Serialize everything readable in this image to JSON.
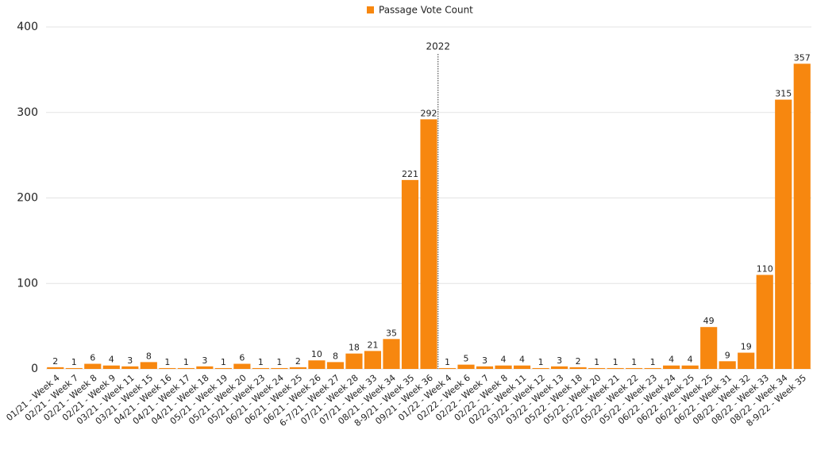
{
  "chart_data": {
    "type": "bar",
    "categories": [
      "01/21 - Week 4",
      "02/21 - Week 7",
      "02/21 - Week 8",
      "02/21 - Week 9",
      "03/21 - Week 11",
      "03/21 - Week 15",
      "04/21 - Week 16",
      "04/21 - Week 17",
      "04/21 - Week 18",
      "05/21 - Week 19",
      "05/21 - Week 20",
      "05/21 - Week 23",
      "06/21 - Week 24",
      "06/21 - Week 25",
      "06/21 - Week 26",
      "6-7/21 - Week 27",
      "07/21 - Week 28",
      "07/21 - Week 33",
      "08/21 - Week 34",
      "8-9/21 - Week 35",
      "09/21 - Week 36",
      "01/22 - Week 4",
      "02/22 - Week 6",
      "02/22 - Week 7",
      "02/22 - Week 8",
      "02/22 - Week 11",
      "03/22 - Week 12",
      "03/22 - Week 13",
      "05/22 - Week 18",
      "05/22 - Week 20",
      "05/22 - Week 21",
      "05/22 - Week 22",
      "05/22 - Week 23",
      "06/22 - Week 24",
      "06/22 - Week 25",
      "06/22 - Week 25",
      "06/22 - Week 31",
      "08/22 - Week 32",
      "08/22 - Week 33",
      "08/22 - Week 34",
      "8-9/22 - Week 35"
    ],
    "series": [
      {
        "name": "Passage Vote Count",
        "color": "#f7870f",
        "values": [
          2,
          1,
          6,
          4,
          3,
          8,
          1,
          1,
          3,
          1,
          6,
          1,
          1,
          2,
          10,
          8,
          18,
          21,
          35,
          221,
          292,
          1,
          5,
          3,
          4,
          4,
          1,
          3,
          2,
          1,
          1,
          1,
          1,
          4,
          4,
          49,
          9,
          19,
          110,
          315,
          357
        ]
      }
    ],
    "ylim": [
      0,
      400
    ],
    "yticks": [
      0,
      100,
      200,
      300,
      400
    ],
    "grid": true,
    "legend": "top",
    "annotation": "2022"
  }
}
